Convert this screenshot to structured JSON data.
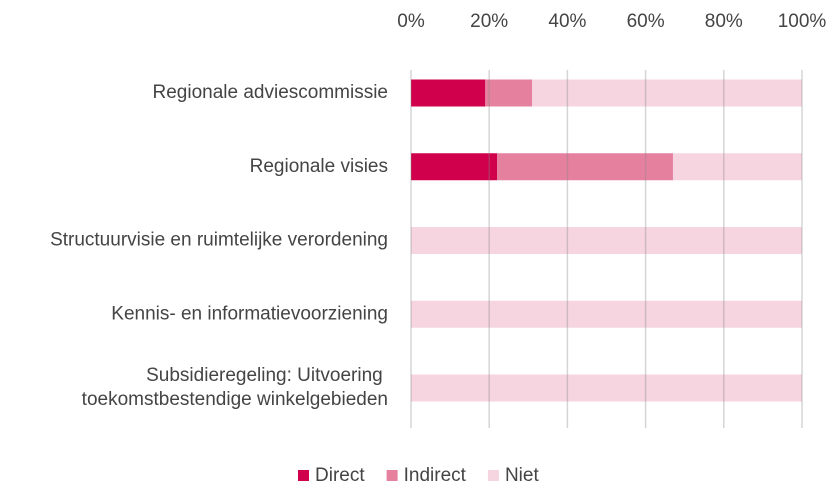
{
  "chart_data": {
    "type": "stacked_bar_horizontal",
    "categories": [
      "Regionale adviescommissie",
      "Regionale visies",
      "Structuurvisie en ruimtelijke verordening",
      "Kennis- en informatievoorziening",
      "Subsidieregeling: Uitvoering toekomstbestendige winkelgebieden"
    ],
    "series": [
      {
        "name": "Direct",
        "color": "#d1004c",
        "values": [
          19,
          22,
          0,
          0,
          0
        ]
      },
      {
        "name": "Indirect",
        "color": "#e6809f",
        "values": [
          12,
          45,
          0,
          0,
          0
        ]
      },
      {
        "name": "Niet",
        "color": "#f6d5e0",
        "values": [
          69,
          33,
          100,
          100,
          100
        ]
      }
    ],
    "xlim": [
      0,
      100
    ],
    "xticks": [
      {
        "value": 0,
        "label": "0%"
      },
      {
        "value": 20,
        "label": "20%"
      },
      {
        "value": 40,
        "label": "40%"
      },
      {
        "value": 60,
        "label": "60%"
      },
      {
        "value": 80,
        "label": "80%"
      },
      {
        "value": 100,
        "label": "100%"
      }
    ],
    "grid": true,
    "legend": "bottom"
  }
}
